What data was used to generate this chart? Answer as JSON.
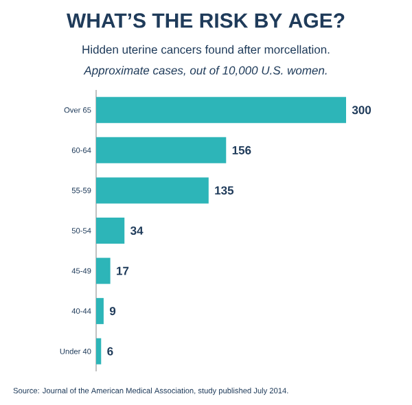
{
  "chart_data": {
    "type": "bar",
    "orientation": "horizontal",
    "title": "WHAT’S THE RISK BY AGE?",
    "subtitle": "Hidden uterine cancers found after morcellation.",
    "annotations": [
      "*Approximate cases, out of 10,000 U.S. women.*",
      "Source: Journal of the American Medical Association, study published July 2014."
    ],
    "categories": [
      "Over 65",
      "60-64",
      "55-59",
      "50-54",
      "45-49",
      "40-44",
      "Under 40"
    ],
    "values": [
      300,
      156,
      135,
      34,
      17,
      9,
      6
    ],
    "color": "#2db5b8",
    "data_labels": true
  }
}
